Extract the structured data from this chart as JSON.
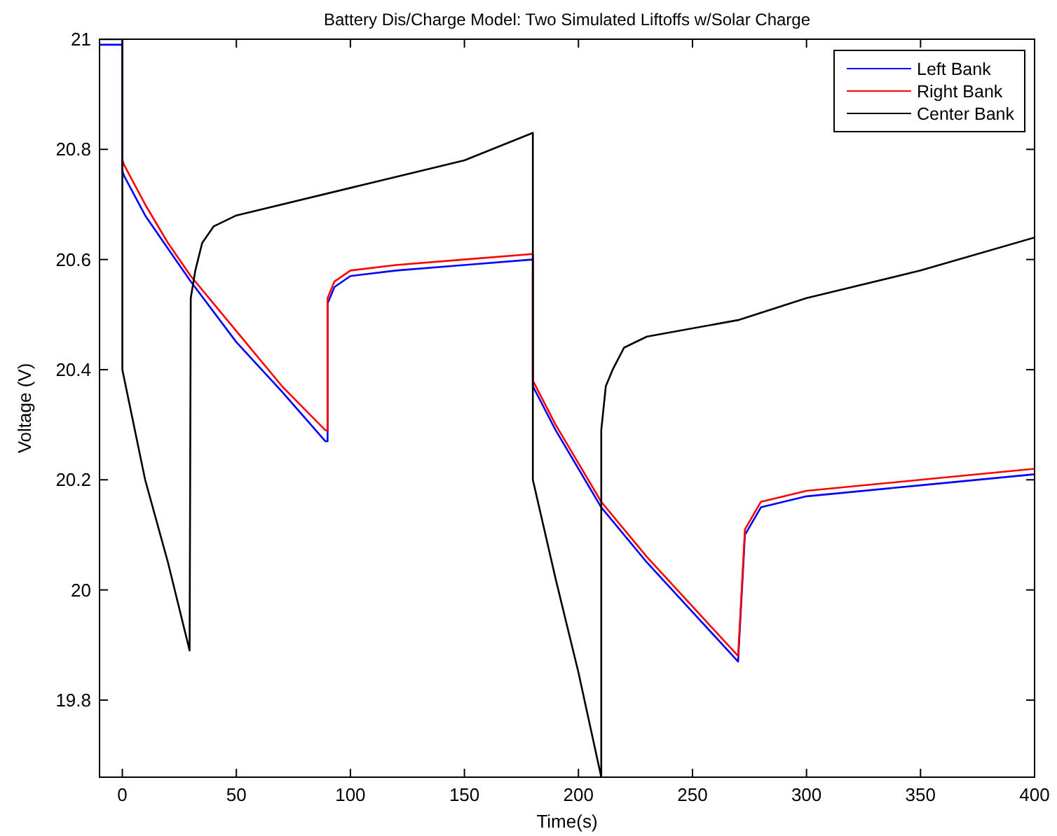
{
  "chart_data": {
    "type": "line",
    "title": "Battery Dis/Charge Model: Two Simulated Liftoffs w/Solar Charge",
    "xlabel": "Time(s)",
    "ylabel": "Voltage (V)",
    "xlim": [
      -10,
      400
    ],
    "ylim": [
      19.66,
      21
    ],
    "xticks": [
      0,
      50,
      100,
      150,
      200,
      250,
      300,
      350,
      400
    ],
    "yticks": [
      {
        "value": 19.8,
        "label": "19.8"
      },
      {
        "value": 20,
        "label": "20"
      },
      {
        "value": 20.2,
        "label": "20.2"
      },
      {
        "value": 20.4,
        "label": "20.4"
      },
      {
        "value": 20.6,
        "label": "20.6"
      },
      {
        "value": 20.8,
        "label": "20.8"
      },
      {
        "value": 21,
        "label": "21"
      }
    ],
    "grid": false,
    "legend": "top right",
    "line_style": "solid",
    "marker": "none",
    "series": [
      {
        "name": "Left Bank",
        "color": "#0000ff",
        "x": [
          -10,
          0,
          0,
          1,
          10,
          20,
          30,
          50,
          70,
          89,
          90,
          90,
          93,
          100,
          120,
          150,
          180,
          180,
          190,
          200,
          210,
          230,
          250,
          270,
          270,
          273,
          280,
          300,
          350,
          400
        ],
        "values": [
          20.99,
          20.99,
          20.76,
          20.75,
          20.68,
          20.62,
          20.56,
          20.45,
          20.36,
          20.27,
          20.27,
          20.52,
          20.55,
          20.57,
          20.58,
          20.59,
          20.6,
          20.37,
          20.29,
          20.22,
          20.15,
          20.05,
          19.96,
          19.87,
          19.87,
          20.1,
          20.15,
          20.17,
          20.19,
          20.21
        ]
      },
      {
        "name": "Right Bank",
        "color": "#ff0000",
        "x": [
          0,
          1,
          10,
          20,
          30,
          50,
          70,
          89,
          90,
          90,
          93,
          100,
          120,
          150,
          180,
          180,
          190,
          200,
          210,
          230,
          250,
          270,
          270,
          273,
          280,
          300,
          350,
          400
        ],
        "values": [
          20.78,
          20.77,
          20.7,
          20.63,
          20.57,
          20.47,
          20.37,
          20.29,
          20.29,
          20.53,
          20.56,
          20.58,
          20.59,
          20.6,
          20.61,
          20.38,
          20.3,
          20.23,
          20.16,
          20.06,
          19.97,
          19.88,
          19.88,
          20.11,
          20.16,
          20.18,
          20.2,
          20.22
        ]
      },
      {
        "name": "Center Bank",
        "color": "#000000",
        "x": [
          -10,
          0,
          0,
          3,
          10,
          20,
          29.5,
          30,
          32,
          35,
          40,
          50,
          100,
          150,
          180,
          180,
          190,
          200,
          210,
          210,
          212,
          215,
          220,
          230,
          270,
          300,
          350,
          400
        ],
        "values": [
          21,
          21,
          20.4,
          20.34,
          20.2,
          20.05,
          19.89,
          20.53,
          20.58,
          20.63,
          20.66,
          20.68,
          20.73,
          20.78,
          20.83,
          20.2,
          20.02,
          19.85,
          19.66,
          20.29,
          20.37,
          20.4,
          20.44,
          20.46,
          20.49,
          20.53,
          20.58,
          20.64
        ]
      }
    ]
  }
}
